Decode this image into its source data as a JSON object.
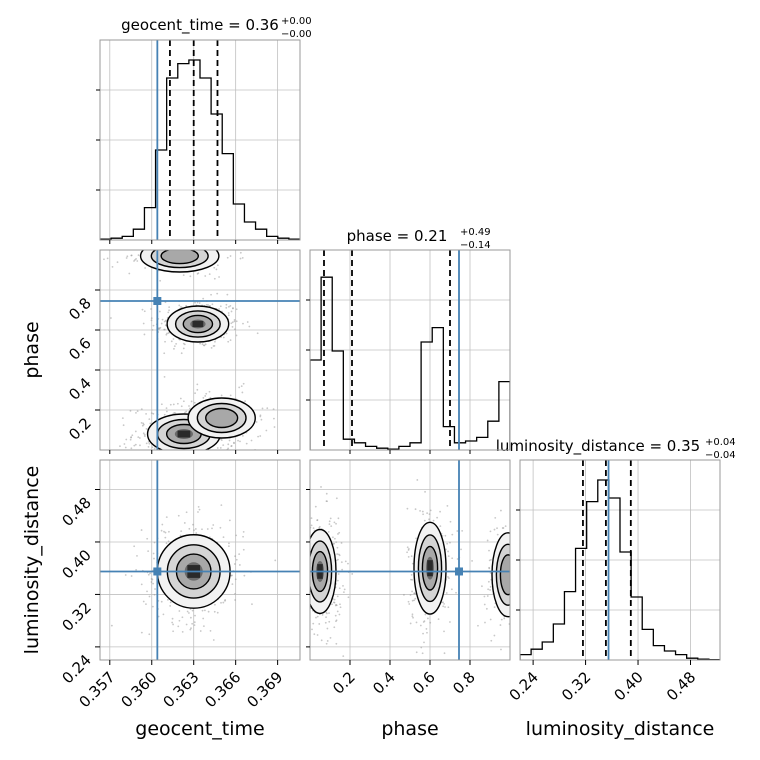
{
  "colors": {
    "truth": "#4682b4",
    "hist": "#000000",
    "grid": "#c0c0c0",
    "density_dark": "#2a2a2a",
    "density_light": "#bdbdbd"
  },
  "titles": {
    "geocent_time": {
      "label": "geocent_time = 0.36",
      "sup": "+0.00",
      "sub": "−0.00"
    },
    "phase": {
      "label": "phase = 0.21",
      "sup": "+0.49",
      "sub": "−0.14"
    },
    "luminosity_distance": {
      "label": "luminosity_distance = 0.35",
      "sup": "+0.04",
      "sub": "−0.04"
    }
  },
  "axis_labels": {
    "x_geocent_time": "geocent_time",
    "x_phase": "phase",
    "x_luminosity_distance": "luminosity_distance",
    "y_phase": "phase",
    "y_luminosity_distance": "luminosity_distance"
  },
  "chart_data": {
    "type": "corner",
    "grid": true,
    "parameters": [
      {
        "name": "geocent_time",
        "range": [
          0.3563,
          0.3706
        ],
        "ticks": [
          0.357,
          0.36,
          0.363,
          0.366,
          0.369
        ],
        "tick_labels": [
          "0.357",
          "0.360",
          "0.363",
          "0.366",
          "0.369"
        ],
        "truth": 0.3604,
        "quantiles": [
          0.3613,
          0.363,
          0.3647
        ],
        "hist": [
          0.005,
          0.01,
          0.02,
          0.06,
          0.18,
          0.5,
          0.9,
          0.98,
          1.0,
          0.9,
          0.7,
          0.48,
          0.2,
          0.1,
          0.06,
          0.02,
          0.01,
          0.005
        ]
      },
      {
        "name": "phase",
        "range": [
          0.0,
          1.0
        ],
        "ticks": [
          0.2,
          0.4,
          0.6,
          0.8
        ],
        "tick_labels": [
          "0.2",
          "0.4",
          "0.6",
          "0.8"
        ],
        "truth": 0.745,
        "quantiles": [
          0.07,
          0.21,
          0.7
        ],
        "hist": [
          0.5,
          0.96,
          0.55,
          0.06,
          0.04,
          0.02,
          0.01,
          0.005,
          0.02,
          0.04,
          0.6,
          0.68,
          0.13,
          0.04,
          0.05,
          0.07,
          0.16,
          0.38
        ]
      },
      {
        "name": "luminosity_distance",
        "range": [
          0.22,
          0.525
        ],
        "ticks": [
          0.24,
          0.32,
          0.4,
          0.48
        ],
        "tick_labels": [
          "0.24",
          "0.32",
          "0.40",
          "0.48"
        ],
        "truth": 0.355,
        "quantiles": [
          0.316,
          0.351,
          0.389
        ],
        "hist": [
          0.03,
          0.06,
          0.1,
          0.2,
          0.38,
          0.62,
          0.88,
          1.0,
          0.9,
          0.6,
          0.35,
          0.17,
          0.08,
          0.05,
          0.03,
          0.01,
          0.005,
          0.002
        ]
      }
    ],
    "density_clusters": {
      "phase_vs_geocent_time": [
        {
          "x": 0.3633,
          "y": 0.63,
          "sx": 0.0011,
          "sy": 0.045,
          "weight": 0.9
        },
        {
          "x": 0.3623,
          "y": 0.08,
          "sx": 0.0013,
          "sy": 0.05,
          "weight": 1.0
        },
        {
          "x": 0.365,
          "y": 0.16,
          "sx": 0.0012,
          "sy": 0.05,
          "weight": 0.4
        },
        {
          "x": 0.362,
          "y": 0.97,
          "sx": 0.0014,
          "sy": 0.04,
          "weight": 0.5
        }
      ],
      "luminosity_distance_vs_geocent_time": [
        {
          "x": 0.363,
          "y": 0.355,
          "sx": 0.0013,
          "sy": 0.028,
          "weight": 1.0
        }
      ],
      "luminosity_distance_vs_phase": [
        {
          "x": 0.05,
          "y": 0.355,
          "sx": 0.04,
          "sy": 0.032,
          "weight": 1.0
        },
        {
          "x": 0.6,
          "y": 0.36,
          "sx": 0.04,
          "sy": 0.035,
          "weight": 0.8
        },
        {
          "x": 0.99,
          "y": 0.35,
          "sx": 0.04,
          "sy": 0.032,
          "weight": 0.5
        }
      ]
    }
  }
}
